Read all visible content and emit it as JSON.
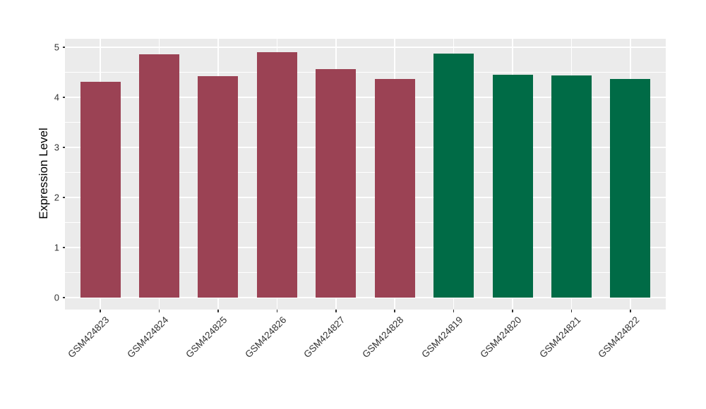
{
  "chart_data": {
    "type": "bar",
    "title": "",
    "xlabel": "",
    "ylabel": "Expression Level",
    "categories": [
      "GSM424823",
      "GSM424824",
      "GSM424825",
      "GSM424826",
      "GSM424827",
      "GSM424828",
      "GSM424819",
      "GSM424820",
      "GSM424821",
      "GSM424822"
    ],
    "values": [
      4.31,
      4.86,
      4.42,
      4.9,
      4.57,
      4.36,
      4.88,
      4.45,
      4.44,
      4.36
    ],
    "bar_groups": [
      "group1",
      "group1",
      "group1",
      "group1",
      "group1",
      "group1",
      "group2",
      "group2",
      "group2",
      "group2"
    ],
    "group_colors": {
      "group1": "#9B4254",
      "group2": "#006B46"
    },
    "ylim": [
      0,
      5
    ],
    "yticks": [
      0,
      1,
      2,
      3,
      4,
      5
    ],
    "minor_grid_step": 0.5,
    "grid": "on",
    "legend": "none",
    "panel_background": "#EBEBEB",
    "grid_color": "#FFFFFF",
    "tick_text_color": "#333333"
  }
}
